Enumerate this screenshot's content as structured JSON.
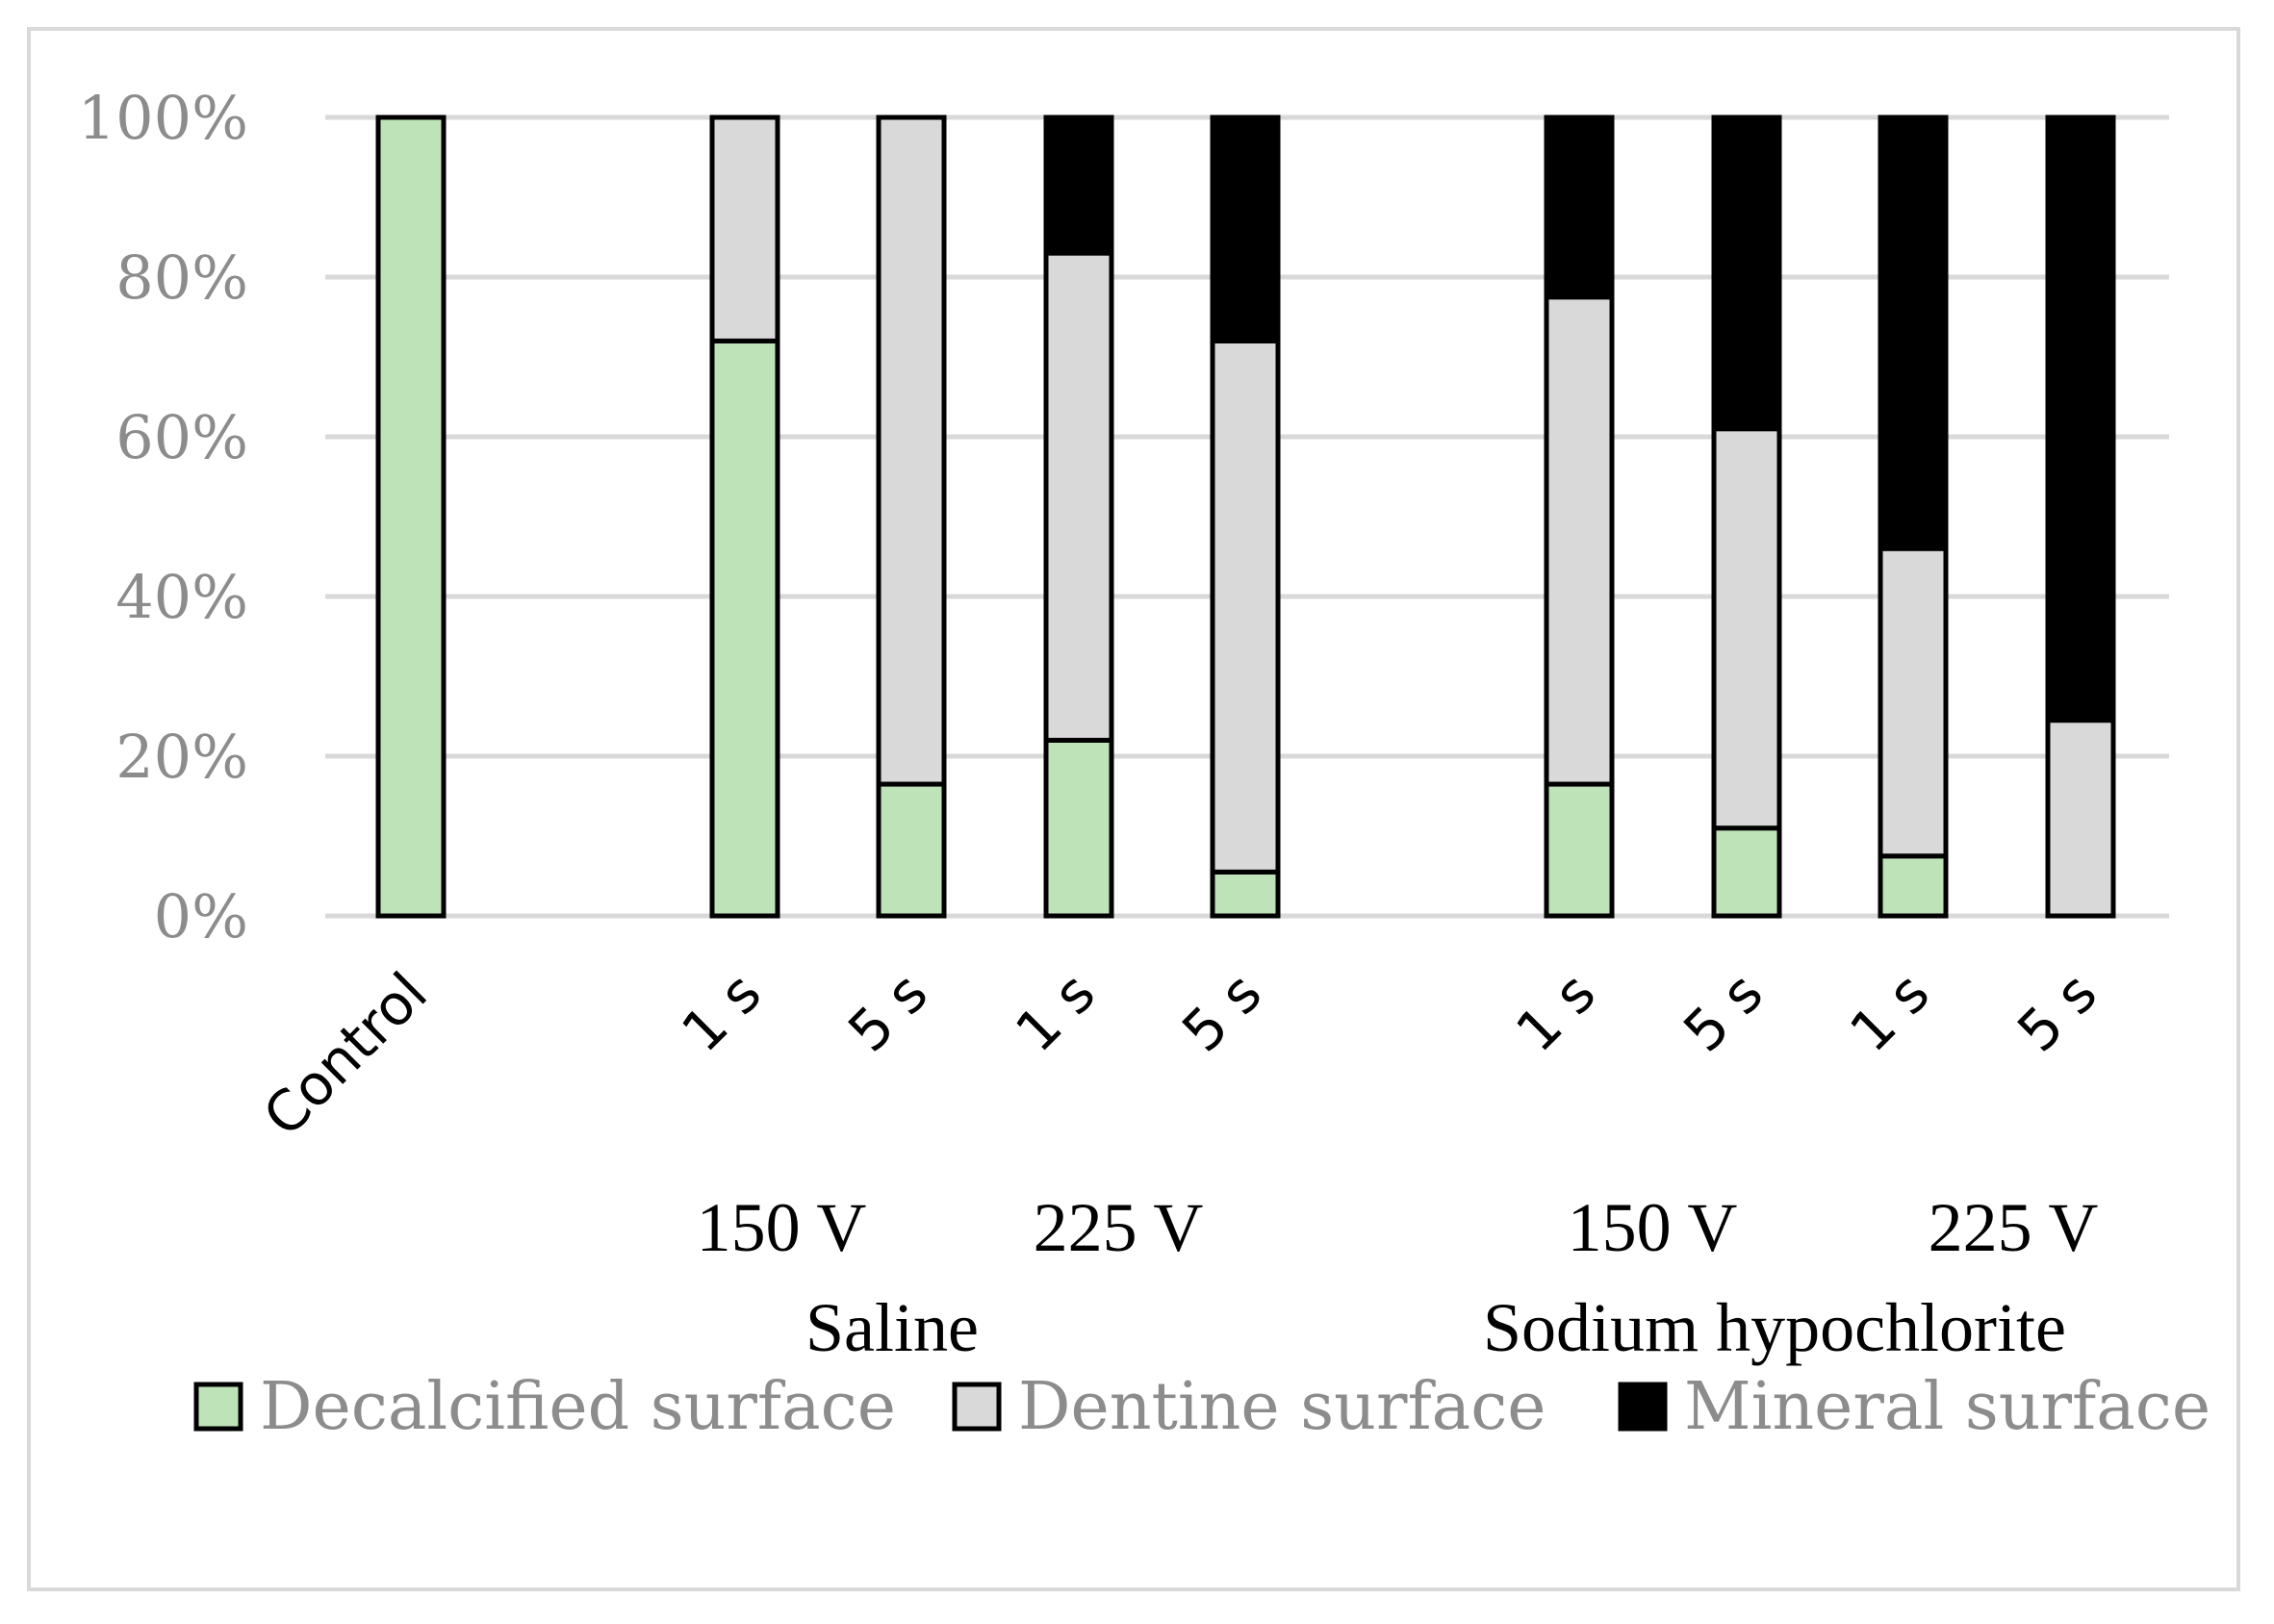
{
  "chart_data": {
    "type": "bar",
    "stacked": true,
    "percent": true,
    "categories": [
      "Control",
      "1 s",
      "5 s",
      "1 s",
      "5 s",
      "1 s",
      "5 s",
      "1 s",
      "5 s"
    ],
    "voltage_labels": [
      "150 V",
      "225 V",
      "150 V",
      "225 V"
    ],
    "group_labels": [
      "Saline",
      "Sodium hypochlorite"
    ],
    "series": [
      {
        "name": "Decalcified surface",
        "color": "#bfe3b8",
        "values": [
          100,
          72,
          16.5,
          22,
          5.5,
          16.5,
          11,
          7.5,
          0
        ]
      },
      {
        "name": "Dentine surface",
        "color": "#d9d9d9",
        "values": [
          0,
          28,
          83.5,
          61,
          66.5,
          61,
          50,
          38.5,
          24.5
        ]
      },
      {
        "name": "Mineral surface",
        "color": "#000000",
        "values": [
          0,
          0,
          0,
          17,
          28,
          22.5,
          39,
          54,
          75.5
        ]
      }
    ],
    "y_ticks": [
      "0%",
      "20%",
      "40%",
      "60%",
      "80%",
      "100%"
    ],
    "ylim": [
      0,
      100
    ],
    "grid": true,
    "legend": "bottom"
  }
}
